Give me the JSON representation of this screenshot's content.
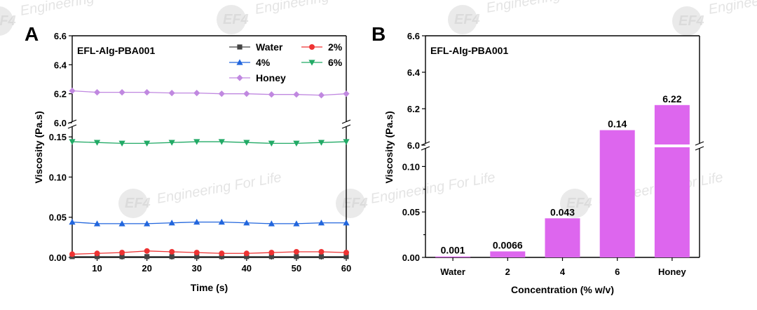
{
  "watermark": {
    "text": "Engineering For Life",
    "short_text": "Engineering",
    "logo_text": "EF4"
  },
  "colors": {
    "pink": "#dd77ee",
    "bar": "#dd66ee",
    "water": "#444444",
    "two": "#ee3333",
    "four": "#2266dd",
    "six": "#22aa66",
    "honey": "#c088e0"
  },
  "chart_data": [
    {
      "panel": "A",
      "type": "line",
      "annotation": "EFL-Alg-PBA001",
      "xlabel": "Time (s)",
      "ylabel": "Viscosity (Pa.s)",
      "xlim": [
        5,
        60
      ],
      "x_ticks": [
        "10",
        "20",
        "30",
        "40",
        "50",
        "60"
      ],
      "y_ticks_lower": [
        "0.00",
        "0.05",
        "0.10",
        "0.15"
      ],
      "y_ticks_upper": [
        "6.0",
        "6.2",
        "6.4",
        "6.6"
      ],
      "ylim_lower": [
        0,
        0.165
      ],
      "ylim_upper": [
        6.0,
        6.6
      ],
      "axis_break": "between 0.165 and 6.0",
      "legend_position": "top-right",
      "x": [
        5,
        10,
        15,
        20,
        25,
        30,
        35,
        40,
        45,
        50,
        55,
        60
      ],
      "series": [
        {
          "name": "Water",
          "marker": "square",
          "color": "#444444",
          "values": [
            0.001,
            0.001,
            0.001,
            0.001,
            0.001,
            0.001,
            0.001,
            0.001,
            0.001,
            0.001,
            0.001,
            0.001
          ]
        },
        {
          "name": "2%",
          "marker": "circle",
          "color": "#ee3333",
          "values": [
            0.004,
            0.005,
            0.006,
            0.008,
            0.007,
            0.006,
            0.005,
            0.005,
            0.006,
            0.007,
            0.007,
            0.006
          ]
        },
        {
          "name": "4%",
          "marker": "triangle-up",
          "color": "#2266dd",
          "values": [
            0.044,
            0.042,
            0.042,
            0.042,
            0.043,
            0.044,
            0.044,
            0.043,
            0.042,
            0.042,
            0.043,
            0.043
          ]
        },
        {
          "name": "6%",
          "marker": "triangle-down",
          "color": "#22aa66",
          "values": [
            0.144,
            0.143,
            0.142,
            0.142,
            0.143,
            0.144,
            0.144,
            0.143,
            0.142,
            0.142,
            0.143,
            0.144
          ]
        },
        {
          "name": "Honey",
          "marker": "diamond",
          "color": "#c088e0",
          "values": [
            6.22,
            6.21,
            6.21,
            6.21,
            6.205,
            6.205,
            6.2,
            6.2,
            6.195,
            6.195,
            6.19,
            6.2
          ]
        }
      ]
    },
    {
      "panel": "B",
      "type": "bar",
      "annotation": "EFL-Alg-PBA001",
      "xlabel": "Concentration (% w/v)",
      "ylabel": "Viscosity (Pa.s)",
      "categories": [
        "Water",
        "2",
        "4",
        "6",
        "Honey"
      ],
      "values": [
        0.001,
        0.0066,
        0.043,
        0.14,
        6.22
      ],
      "value_labels": [
        "0.001",
        "0.0066",
        "0.043",
        "0.14",
        "6.22"
      ],
      "y_ticks_lower": [
        "0.00",
        "0.05",
        "0.10"
      ],
      "y_ticks_upper": [
        "6.0",
        "6.2",
        "6.4",
        "6.6"
      ],
      "ylim_lower": [
        0,
        0.125
      ],
      "ylim_upper": [
        6.0,
        6.6
      ],
      "axis_break": "between 0.125 and 6.0"
    }
  ]
}
